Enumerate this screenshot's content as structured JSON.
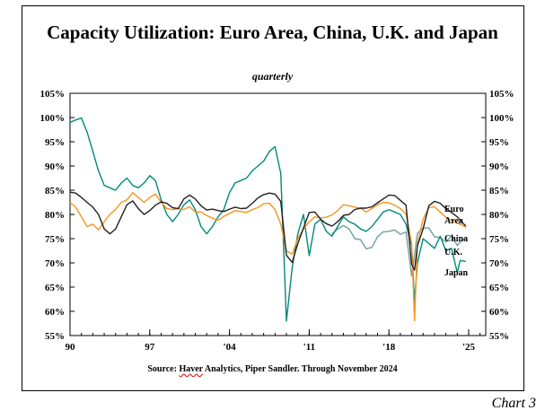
{
  "title": "Capacity Utilization: Euro Area, China, U.K. and Japan",
  "subtitle": "quarterly",
  "source_prefix": "Source: ",
  "source_haver": "Haver",
  "source_rest": " Analytics, Piper Sandler. Through November 2024",
  "chart_number": "Chart 3",
  "chart_data": {
    "type": "line",
    "title": "Capacity Utilization: Euro Area, China, U.K. and Japan",
    "subtitle": "quarterly",
    "xlabel": "",
    "ylabel": "",
    "xlim": [
      1990,
      2026.5
    ],
    "ylim": [
      55,
      105
    ],
    "x_ticks": [
      {
        "x": 1990,
        "label": "90"
      },
      {
        "x": 1997,
        "label": "97"
      },
      {
        "x": 2004,
        "label": "'04"
      },
      {
        "x": 2011,
        "label": "'11"
      },
      {
        "x": 2018,
        "label": "'18"
      },
      {
        "x": 2025,
        "label": "'25"
      }
    ],
    "y_ticks": [
      55,
      60,
      65,
      70,
      75,
      80,
      85,
      90,
      95,
      100,
      105
    ],
    "y_tick_suffix": "%",
    "grid": false,
    "legend": "labels at right end of lines",
    "series": [
      {
        "name": "Euro Area",
        "label_lines": [
          "Euro",
          "Area"
        ],
        "color": "#231f20",
        "points": [
          [
            1990,
            84.6
          ],
          [
            1990.5,
            84.4
          ],
          [
            1991,
            83.5
          ],
          [
            1991.5,
            82.5
          ],
          [
            1992,
            81.5
          ],
          [
            1992.5,
            80
          ],
          [
            1993,
            77
          ],
          [
            1993.5,
            76
          ],
          [
            1994,
            77
          ],
          [
            1994.5,
            79.5
          ],
          [
            1995,
            82
          ],
          [
            1995.5,
            82.8
          ],
          [
            1996,
            81.2
          ],
          [
            1996.5,
            80
          ],
          [
            1997,
            80.8
          ],
          [
            1997.5,
            81.9
          ],
          [
            1998,
            82.6
          ],
          [
            1998.5,
            82.3
          ],
          [
            1999,
            81.4
          ],
          [
            1999.5,
            81.2
          ],
          [
            2000,
            83.2
          ],
          [
            2000.5,
            84
          ],
          [
            2001,
            83.2
          ],
          [
            2001.5,
            81.8
          ],
          [
            2002,
            80.9
          ],
          [
            2002.5,
            81.1
          ],
          [
            2003,
            80.8
          ],
          [
            2003.5,
            80.6
          ],
          [
            2004,
            81.1
          ],
          [
            2004.5,
            81.5
          ],
          [
            2005,
            81.2
          ],
          [
            2005.5,
            81.3
          ],
          [
            2006,
            82.3
          ],
          [
            2006.5,
            83.4
          ],
          [
            2007,
            84.1
          ],
          [
            2007.5,
            84.4
          ],
          [
            2008,
            84.2
          ],
          [
            2008.5,
            82.7
          ],
          [
            2009,
            71.6
          ],
          [
            2009.5,
            70.1
          ],
          [
            2010,
            74
          ],
          [
            2010.5,
            77.2
          ],
          [
            2011,
            80.4
          ],
          [
            2011.5,
            80.5
          ],
          [
            2012,
            79
          ],
          [
            2012.5,
            78.1
          ],
          [
            2013,
            77.6
          ],
          [
            2013.5,
            78.5
          ],
          [
            2014,
            79.8
          ],
          [
            2014.5,
            80
          ],
          [
            2015,
            81
          ],
          [
            2015.5,
            81.3
          ],
          [
            2016,
            81.3
          ],
          [
            2016.5,
            81.6
          ],
          [
            2017,
            82.4
          ],
          [
            2017.5,
            83.2
          ],
          [
            2018,
            84
          ],
          [
            2018.5,
            83.9
          ],
          [
            2019,
            82.9
          ],
          [
            2019.5,
            81.9
          ],
          [
            2020,
            69.7
          ],
          [
            2020.25,
            68.5
          ],
          [
            2020.5,
            73.5
          ],
          [
            2021,
            77
          ],
          [
            2021.5,
            81.8
          ],
          [
            2022,
            82.7
          ],
          [
            2022.5,
            82.3
          ],
          [
            2023,
            81.2
          ],
          [
            2023.5,
            80.4
          ],
          [
            2024,
            79.5
          ],
          [
            2024.5,
            78.2
          ],
          [
            2024.75,
            77.6
          ]
        ]
      },
      {
        "name": "China",
        "label_lines": [
          "China"
        ],
        "color": "#6d9ea5",
        "points": [
          [
            2013,
            76
          ],
          [
            2013.5,
            77
          ],
          [
            2014,
            77.7
          ],
          [
            2014.5,
            77
          ],
          [
            2015,
            75
          ],
          [
            2015.5,
            74.8
          ],
          [
            2016,
            72.9
          ],
          [
            2016.5,
            73.2
          ],
          [
            2017,
            75.4
          ],
          [
            2017.5,
            76.4
          ],
          [
            2018,
            76.5
          ],
          [
            2018.5,
            76.8
          ],
          [
            2019,
            75.9
          ],
          [
            2019.5,
            76.4
          ],
          [
            2020,
            67.3
          ],
          [
            2020.5,
            76.1
          ],
          [
            2021,
            77.2
          ],
          [
            2021.5,
            77.2
          ],
          [
            2022,
            75.4
          ],
          [
            2022.5,
            75.2
          ],
          [
            2023,
            74.3
          ],
          [
            2023.5,
            75.6
          ],
          [
            2024,
            73.6
          ],
          [
            2024.5,
            74.9
          ],
          [
            2024.75,
            75.1
          ]
        ]
      },
      {
        "name": "U.K.",
        "label_lines": [
          "U.K."
        ],
        "color": "#f7941d",
        "points": [
          [
            1990,
            82.5
          ],
          [
            1990.5,
            81.5
          ],
          [
            1991,
            79.5
          ],
          [
            1991.5,
            77.5
          ],
          [
            1992,
            78
          ],
          [
            1992.5,
            76.8
          ],
          [
            1993,
            78.5
          ],
          [
            1993.5,
            80
          ],
          [
            1994,
            81
          ],
          [
            1994.5,
            82.5
          ],
          [
            1995,
            83
          ],
          [
            1995.5,
            84.5
          ],
          [
            1996,
            83.5
          ],
          [
            1996.5,
            82.5
          ],
          [
            1997,
            83.5
          ],
          [
            1997.5,
            84.2
          ],
          [
            1998,
            82.5
          ],
          [
            1998.5,
            81.2
          ],
          [
            1999,
            81
          ],
          [
            1999.5,
            81.2
          ],
          [
            2000,
            81
          ],
          [
            2000.5,
            81.6
          ],
          [
            2001,
            80.5
          ],
          [
            2001.5,
            80.5
          ],
          [
            2002,
            79.8
          ],
          [
            2002.5,
            79.2
          ],
          [
            2003,
            78.8
          ],
          [
            2003.5,
            79.6
          ],
          [
            2004,
            80.2
          ],
          [
            2004.5,
            80.8
          ],
          [
            2005,
            80.6
          ],
          [
            2005.5,
            80.4
          ],
          [
            2006,
            81
          ],
          [
            2006.5,
            81.4
          ],
          [
            2007,
            82.2
          ],
          [
            2007.5,
            82.3
          ],
          [
            2008,
            81
          ],
          [
            2008.5,
            78
          ],
          [
            2009,
            72.5
          ],
          [
            2009.5,
            71.8
          ],
          [
            2010,
            75
          ],
          [
            2010.5,
            77
          ],
          [
            2011,
            78.5
          ],
          [
            2011.5,
            79.5
          ],
          [
            2012,
            79.3
          ],
          [
            2012.5,
            79.4
          ],
          [
            2013,
            79.9
          ],
          [
            2013.5,
            80.8
          ],
          [
            2014,
            82
          ],
          [
            2014.5,
            81.8
          ],
          [
            2015,
            81.5
          ],
          [
            2015.5,
            81.3
          ],
          [
            2016,
            80.5
          ],
          [
            2016.5,
            81.2
          ],
          [
            2017,
            82
          ],
          [
            2017.5,
            82.5
          ],
          [
            2018,
            82.4
          ],
          [
            2018.5,
            81.9
          ],
          [
            2019,
            81.2
          ],
          [
            2019.5,
            80.1
          ],
          [
            2020,
            74
          ],
          [
            2020.25,
            58.1
          ],
          [
            2020.5,
            74
          ],
          [
            2021,
            79
          ],
          [
            2021.5,
            81.4
          ],
          [
            2022,
            81.6
          ],
          [
            2022.5,
            80.5
          ],
          [
            2023,
            79.4
          ],
          [
            2023.5,
            78.8
          ],
          [
            2024,
            78.2
          ],
          [
            2024.5,
            77.7
          ],
          [
            2024.75,
            77.3
          ]
        ]
      },
      {
        "name": "Japan",
        "label_lines": [
          "Japan"
        ],
        "color": "#00897b",
        "points": [
          [
            1990,
            99
          ],
          [
            1990.5,
            99.5
          ],
          [
            1991,
            99.9
          ],
          [
            1991.5,
            97
          ],
          [
            1992,
            93
          ],
          [
            1992.5,
            89
          ],
          [
            1993,
            86
          ],
          [
            1993.5,
            85.5
          ],
          [
            1994,
            85
          ],
          [
            1994.5,
            86.5
          ],
          [
            1995,
            87.5
          ],
          [
            1995.5,
            86
          ],
          [
            1996,
            85.5
          ],
          [
            1996.5,
            86.5
          ],
          [
            1997,
            88
          ],
          [
            1997.5,
            87
          ],
          [
            1998,
            83
          ],
          [
            1998.5,
            80
          ],
          [
            1999,
            78.5
          ],
          [
            1999.5,
            80
          ],
          [
            2000,
            82
          ],
          [
            2000.5,
            83
          ],
          [
            2001,
            81
          ],
          [
            2001.5,
            77.5
          ],
          [
            2002,
            76
          ],
          [
            2002.5,
            77.5
          ],
          [
            2003,
            79.5
          ],
          [
            2003.5,
            81
          ],
          [
            2004,
            84.5
          ],
          [
            2004.5,
            86.5
          ],
          [
            2005,
            87
          ],
          [
            2005.5,
            87.5
          ],
          [
            2006,
            89
          ],
          [
            2006.5,
            90
          ],
          [
            2007,
            91
          ],
          [
            2007.5,
            93
          ],
          [
            2008,
            94
          ],
          [
            2008.5,
            88.5
          ],
          [
            2009,
            58
          ],
          [
            2009.5,
            69
          ],
          [
            2010,
            76
          ],
          [
            2010.5,
            80
          ],
          [
            2011,
            71.5
          ],
          [
            2011.5,
            78
          ],
          [
            2012,
            79
          ],
          [
            2012.5,
            76.5
          ],
          [
            2013,
            75.5
          ],
          [
            2013.5,
            77.5
          ],
          [
            2014,
            79.5
          ],
          [
            2014.5,
            78.5
          ],
          [
            2015,
            78
          ],
          [
            2015.5,
            77
          ],
          [
            2016,
            76.5
          ],
          [
            2016.5,
            77.5
          ],
          [
            2017,
            79
          ],
          [
            2017.5,
            80.5
          ],
          [
            2018,
            81
          ],
          [
            2018.5,
            80.5
          ],
          [
            2019,
            80
          ],
          [
            2019.5,
            78
          ],
          [
            2020,
            73.5
          ],
          [
            2020.25,
            62
          ],
          [
            2020.5,
            70
          ],
          [
            2021,
            75
          ],
          [
            2021.5,
            74
          ],
          [
            2022,
            73
          ],
          [
            2022.5,
            75.5
          ],
          [
            2023,
            72.5
          ],
          [
            2023.5,
            73
          ],
          [
            2024,
            68
          ],
          [
            2024.25,
            70.5
          ],
          [
            2024.75,
            70.3
          ]
        ]
      }
    ]
  }
}
